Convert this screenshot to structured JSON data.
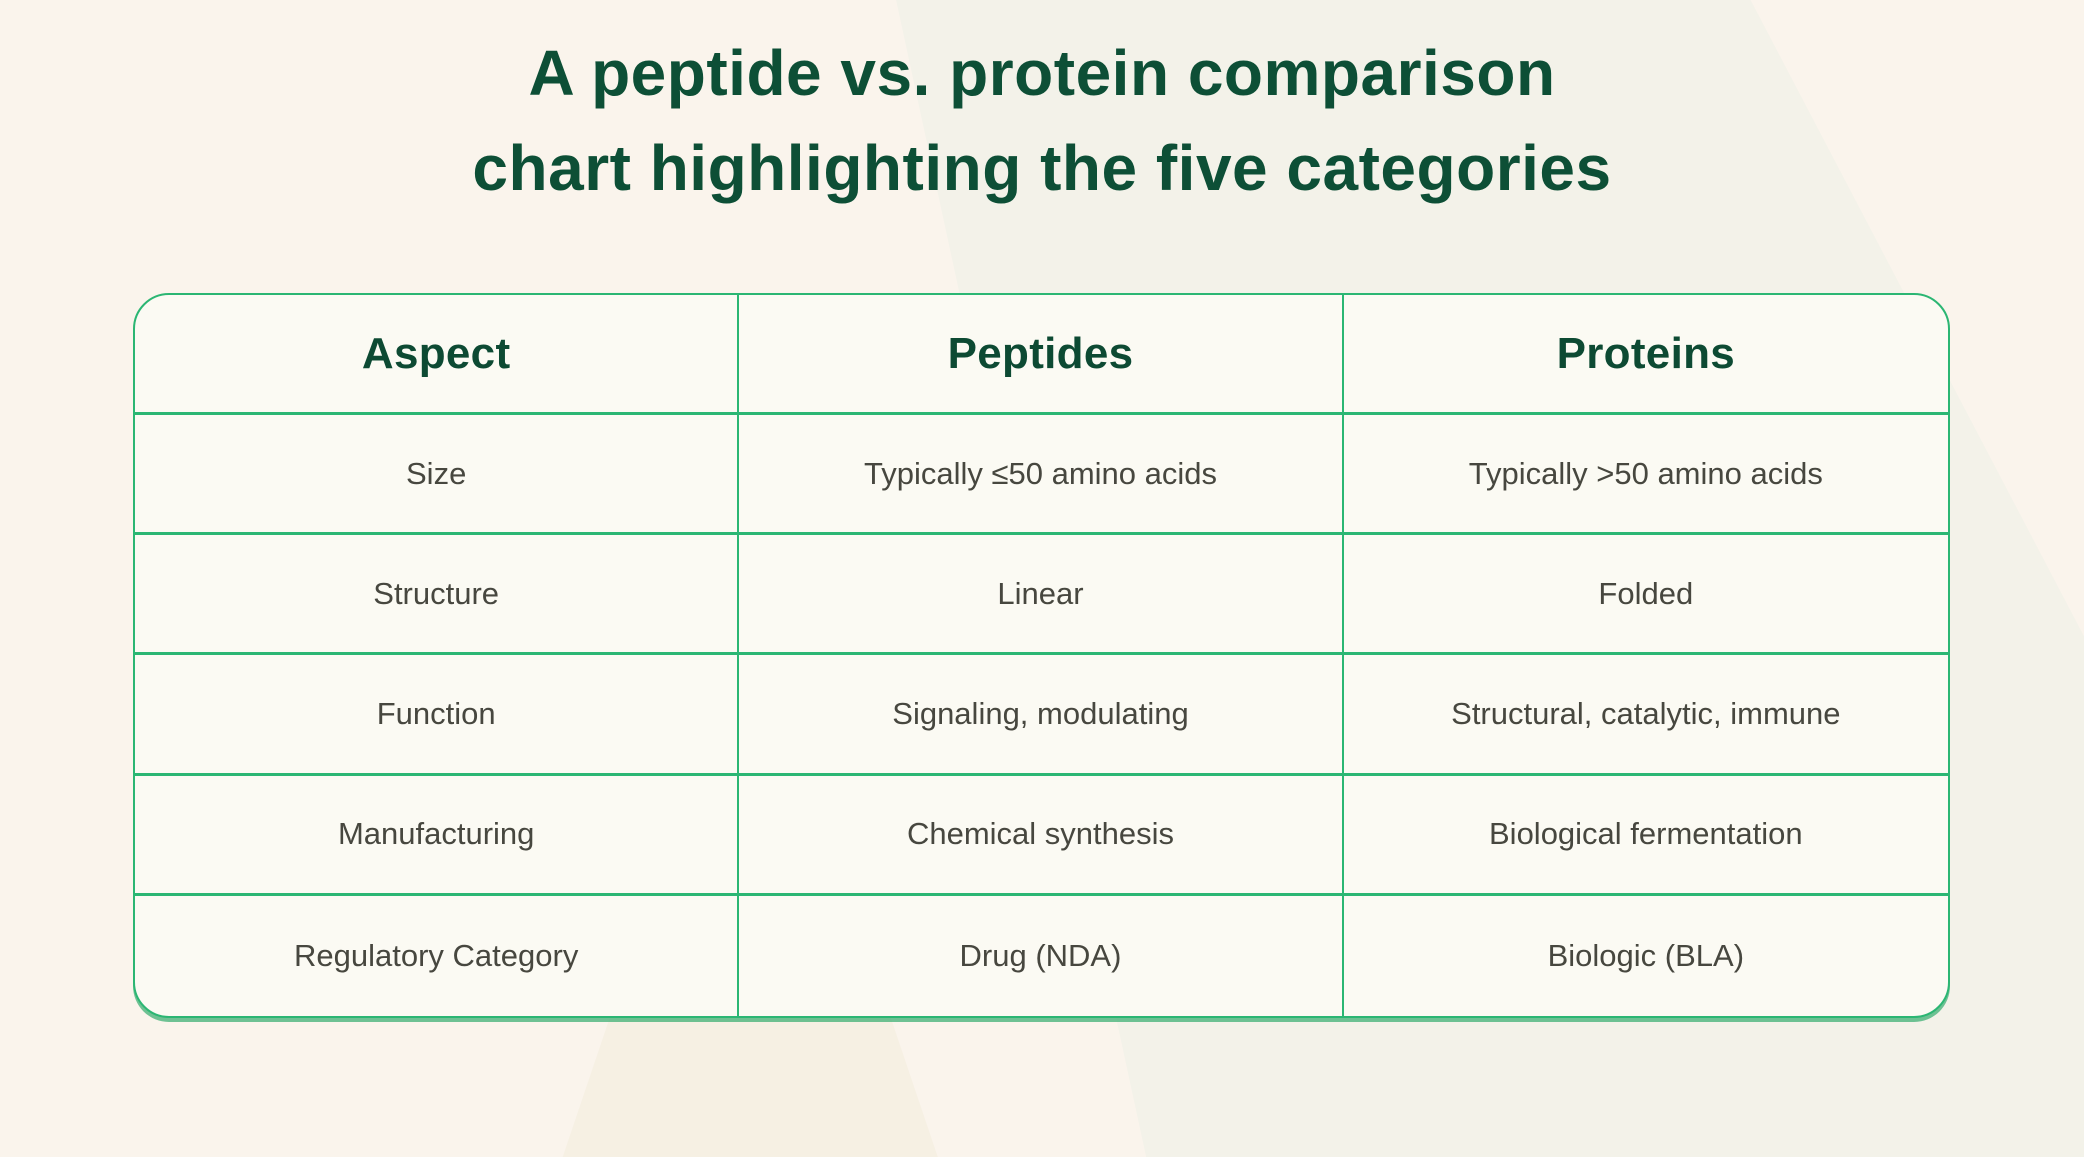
{
  "page": {
    "title_line1": "A peptide vs. protein comparison",
    "title_line2": "chart highlighting the five categories"
  },
  "colors": {
    "page_background": "#faf4ec",
    "title_green": "#0d4f36",
    "table_border_green": "#2bb673",
    "header_text_green": "#0d4a33",
    "cell_text_gray": "#47473f",
    "table_background": "#fbfaf3"
  },
  "table": {
    "headers": [
      "Aspect",
      "Peptides",
      "Proteins"
    ],
    "rows": [
      [
        "Size",
        "Typically ≤50 amino acids",
        "Typically >50 amino acids"
      ],
      [
        "Structure",
        "Linear",
        "Folded"
      ],
      [
        "Function",
        "Signaling, modulating",
        "Structural, catalytic, immune"
      ],
      [
        "Manufacturing",
        "Chemical synthesis",
        "Biological fermentation"
      ],
      [
        "Regulatory Category",
        "Drug (NDA)",
        "Biologic (BLA)"
      ]
    ]
  },
  "chart_data": {
    "type": "table",
    "title": "A peptide vs. protein comparison chart highlighting the five categories",
    "columns": [
      "Aspect",
      "Peptides",
      "Proteins"
    ],
    "rows": [
      {
        "aspect": "Size",
        "peptides": "Typically ≤50 amino acids",
        "proteins": "Typically >50 amino acids"
      },
      {
        "aspect": "Structure",
        "peptides": "Linear",
        "proteins": "Folded"
      },
      {
        "aspect": "Function",
        "peptides": "Signaling, modulating",
        "proteins": "Structural, catalytic, immune"
      },
      {
        "aspect": "Manufacturing",
        "peptides": "Chemical synthesis",
        "proteins": "Biological fermentation"
      },
      {
        "aspect": "Regulatory Category",
        "peptides": "Drug (NDA)",
        "proteins": "Biologic (BLA)"
      }
    ]
  }
}
